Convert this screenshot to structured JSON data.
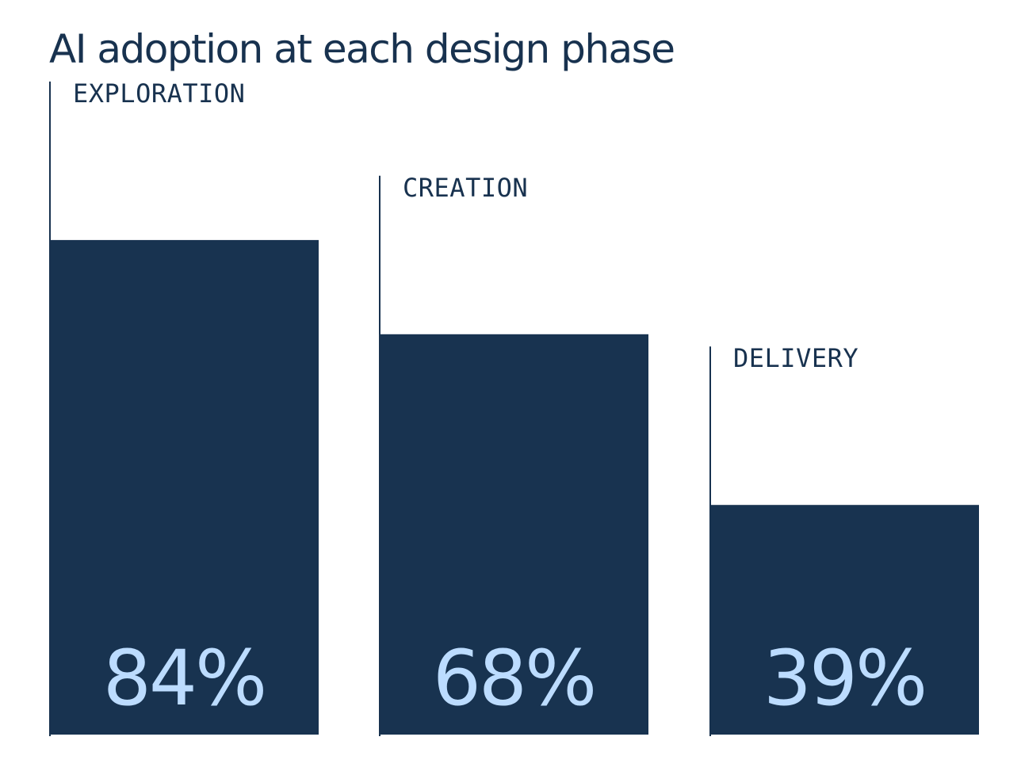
{
  "colors": {
    "bar": "#183350",
    "title": "#18324f",
    "label": "#18324f",
    "value_text": "#bcdcff",
    "leader": "#18324f"
  },
  "chart_data": {
    "type": "bar",
    "title": "AI adoption at each design phase",
    "categories": [
      "EXPLORATION",
      "CREATION",
      "DELIVERY"
    ],
    "values": [
      84,
      68,
      39
    ],
    "value_labels": [
      "84%",
      "68%",
      "39%"
    ],
    "unit": "%",
    "xlabel": "",
    "ylabel": "",
    "ylim": [
      0,
      100
    ],
    "grid": false,
    "legend": "none"
  }
}
